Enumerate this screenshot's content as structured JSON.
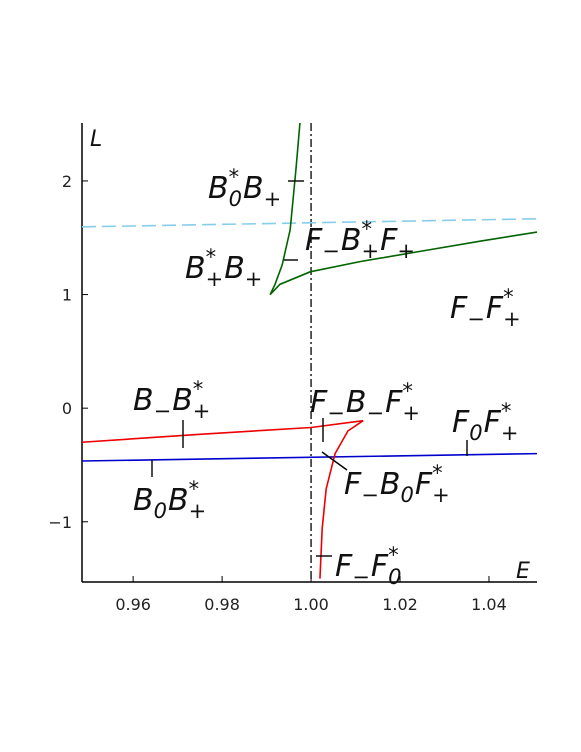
{
  "chart_data": {
    "type": "line",
    "x_label": "E",
    "y_label": "L",
    "xlim": [
      0.9485,
      1.0508
    ],
    "ylim": [
      -1.53,
      2.51
    ],
    "xticks": [
      0.96,
      0.98,
      {
        "value": 1,
        "label": "1.00"
      },
      1.02,
      1.04
    ],
    "yticks": [
      {
        "value": -1,
        "label": "−1"
      },
      0,
      1,
      2
    ],
    "vlines": [
      1
    ],
    "series": [
      {
        "color": "#87ceeb",
        "dash": true,
        "x": [
          0.9485,
          1.0508
        ],
        "values": [
          1.596,
          1.667
        ]
      },
      {
        "color": "#0000cd",
        "x": [
          0.9485,
          1.0508
        ],
        "values": [
          -0.465,
          -0.4
        ]
      },
      {
        "color": "#ee0000",
        "x": [
          0.9485,
          0.975,
          1.0,
          1.0117,
          1.0083,
          1.0054,
          1.0034,
          1.0025,
          1.002
        ],
        "values": [
          -0.3,
          -0.23,
          -0.17,
          -0.11,
          -0.2,
          -0.4,
          -0.71,
          -1.06,
          -1.5
        ]
      },
      {
        "color": "#006400",
        "x": [
          0.9975,
          0.9966,
          0.9953,
          0.9935,
          0.9919,
          0.9908,
          0.993,
          0.9998,
          1.011,
          1.0245,
          1.038,
          1.0508
        ],
        "values": [
          2.51,
          2.1,
          1.57,
          1.26,
          1.09,
          1.0,
          1.09,
          1.2,
          1.29,
          1.38,
          1.47,
          1.55
        ]
      }
    ],
    "annotations": [
      {
        "parts": [
          {
            "base": "B",
            "sub": "0",
            "sup": "*"
          },
          {
            "base": "B",
            "sub": "+"
          }
        ]
      },
      {
        "parts": [
          {
            "base": "B",
            "sub": "+",
            "sup": "*"
          },
          {
            "base": "B",
            "sub": "+"
          }
        ]
      },
      {
        "parts": [
          {
            "base": "F",
            "sub": "−"
          },
          {
            "base": "B",
            "sub": "+",
            "sup": "*"
          },
          {
            "base": "F",
            "sub": "+"
          }
        ]
      },
      {
        "parts": [
          {
            "base": "F",
            "sub": "−"
          },
          {
            "base": "F",
            "sub": "+",
            "sup": "*"
          }
        ]
      },
      {
        "parts": [
          {
            "base": "B",
            "sub": "−"
          },
          {
            "base": "B",
            "sub": "+",
            "sup": "*"
          }
        ]
      },
      {
        "parts": [
          {
            "base": "F",
            "sub": "−"
          },
          {
            "base": "B",
            "sub": "−"
          },
          {
            "base": "F",
            "sub": "+",
            "sup": "*"
          }
        ]
      },
      {
        "parts": [
          {
            "base": "F",
            "sub": "0"
          },
          {
            "base": "F",
            "sub": "+",
            "sup": "*"
          }
        ]
      },
      {
        "parts": [
          {
            "base": "F",
            "sub": "−"
          },
          {
            "base": "B",
            "sub": "0"
          },
          {
            "base": "F",
            "sub": "+",
            "sup": "*"
          }
        ]
      },
      {
        "parts": [
          {
            "base": "B",
            "sub": "0"
          },
          {
            "base": "B",
            "sub": "+",
            "sup": "*"
          }
        ]
      },
      {
        "parts": [
          {
            "base": "F",
            "sub": "−"
          },
          {
            "base": "F",
            "sub": "0",
            "sup": "*"
          }
        ]
      }
    ]
  }
}
